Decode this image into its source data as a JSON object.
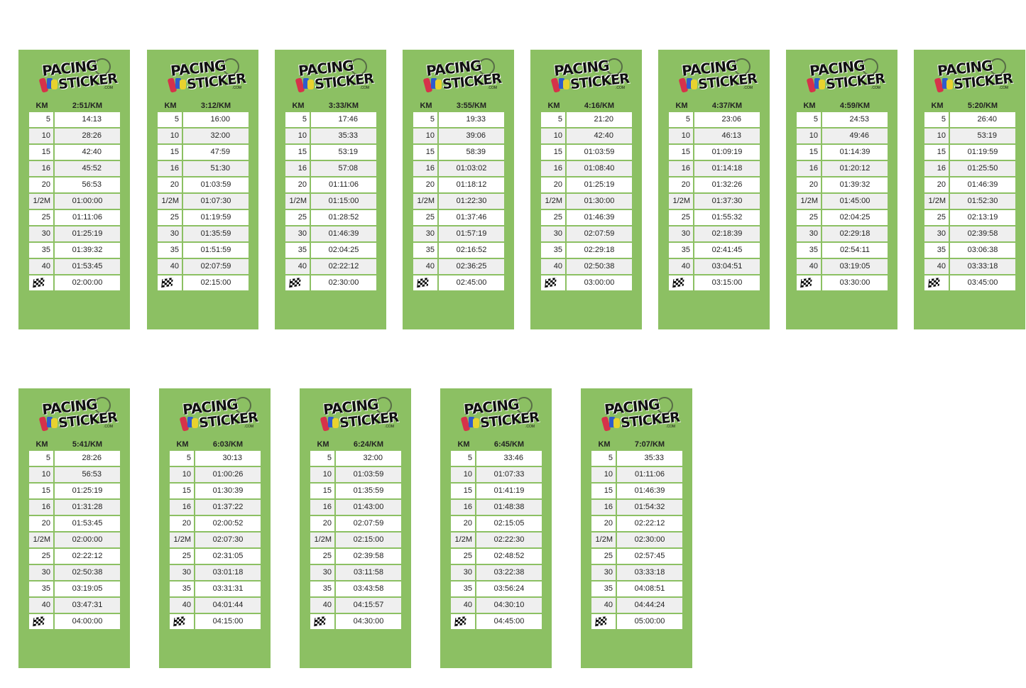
{
  "logo": {
    "line1": "PACING",
    "line2": "STICKER",
    "suffix": ".COM"
  },
  "header_km": "KM",
  "km_labels": [
    "5",
    "10",
    "15",
    "16",
    "20",
    "1/2M",
    "25",
    "30",
    "35",
    "40"
  ],
  "finish_icon": "checkered-flag-icon",
  "colors": {
    "card": "#8cc063",
    "row_alt": "#efefef"
  },
  "cards": [
    {
      "pace": "2:51/KM",
      "times": [
        "14:13",
        "28:26",
        "42:40",
        "45:52",
        "56:53",
        "01:00:00",
        "01:11:06",
        "01:25:19",
        "01:39:32",
        "01:53:45",
        "02:00:00"
      ]
    },
    {
      "pace": "3:12/KM",
      "times": [
        "16:00",
        "32:00",
        "47:59",
        "51:30",
        "01:03:59",
        "01:07:30",
        "01:19:59",
        "01:35:59",
        "01:51:59",
        "02:07:59",
        "02:15:00"
      ]
    },
    {
      "pace": "3:33/KM",
      "times": [
        "17:46",
        "35:33",
        "53:19",
        "57:08",
        "01:11:06",
        "01:15:00",
        "01:28:52",
        "01:46:39",
        "02:04:25",
        "02:22:12",
        "02:30:00"
      ]
    },
    {
      "pace": "3:55/KM",
      "times": [
        "19:33",
        "39:06",
        "58:39",
        "01:03:02",
        "01:18:12",
        "01:22:30",
        "01:37:46",
        "01:57:19",
        "02:16:52",
        "02:36:25",
        "02:45:00"
      ]
    },
    {
      "pace": "4:16/KM",
      "times": [
        "21:20",
        "42:40",
        "01:03:59",
        "01:08:40",
        "01:25:19",
        "01:30:00",
        "01:46:39",
        "02:07:59",
        "02:29:18",
        "02:50:38",
        "03:00:00"
      ]
    },
    {
      "pace": "4:37/KM",
      "times": [
        "23:06",
        "46:13",
        "01:09:19",
        "01:14:18",
        "01:32:26",
        "01:37:30",
        "01:55:32",
        "02:18:39",
        "02:41:45",
        "03:04:51",
        "03:15:00"
      ]
    },
    {
      "pace": "4:59/KM",
      "times": [
        "24:53",
        "49:46",
        "01:14:39",
        "01:20:12",
        "01:39:32",
        "01:45:00",
        "02:04:25",
        "02:29:18",
        "02:54:11",
        "03:19:05",
        "03:30:00"
      ]
    },
    {
      "pace": "5:20/KM",
      "times": [
        "26:40",
        "53:19",
        "01:19:59",
        "01:25:50",
        "01:46:39",
        "01:52:30",
        "02:13:19",
        "02:39:58",
        "03:06:38",
        "03:33:18",
        "03:45:00"
      ]
    },
    {
      "pace": "5:41/KM",
      "times": [
        "28:26",
        "56:53",
        "01:25:19",
        "01:31:28",
        "01:53:45",
        "02:00:00",
        "02:22:12",
        "02:50:38",
        "03:19:05",
        "03:47:31",
        "04:00:00"
      ]
    },
    {
      "pace": "6:03/KM",
      "times": [
        "30:13",
        "01:00:26",
        "01:30:39",
        "01:37:22",
        "02:00:52",
        "02:07:30",
        "02:31:05",
        "03:01:18",
        "03:31:31",
        "04:01:44",
        "04:15:00"
      ]
    },
    {
      "pace": "6:24/KM",
      "times": [
        "32:00",
        "01:03:59",
        "01:35:59",
        "01:43:00",
        "02:07:59",
        "02:15:00",
        "02:39:58",
        "03:11:58",
        "03:43:58",
        "04:15:57",
        "04:30:00"
      ]
    },
    {
      "pace": "6:45/KM",
      "times": [
        "33:46",
        "01:07:33",
        "01:41:19",
        "01:48:38",
        "02:15:05",
        "02:22:30",
        "02:48:52",
        "03:22:38",
        "03:56:24",
        "04:30:10",
        "04:45:00"
      ]
    },
    {
      "pace": "7:07/KM",
      "times": [
        "35:33",
        "01:11:06",
        "01:46:39",
        "01:54:32",
        "02:22:12",
        "02:30:00",
        "02:57:45",
        "03:33:18",
        "04:08:51",
        "04:44:24",
        "05:00:00"
      ]
    }
  ]
}
